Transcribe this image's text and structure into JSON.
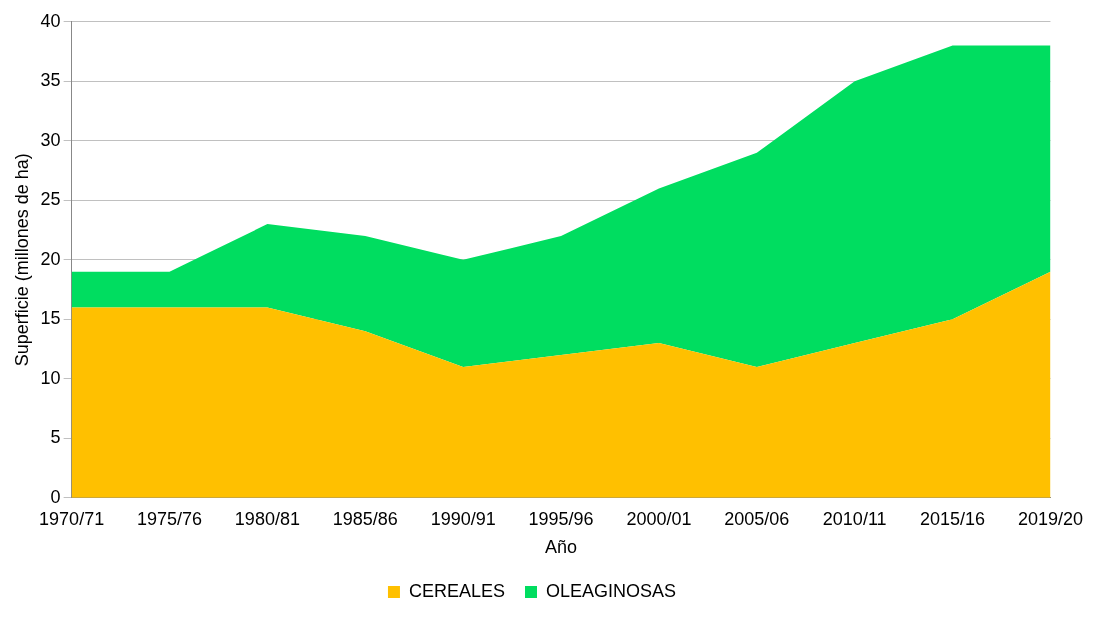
{
  "chart_data": {
    "type": "area",
    "stacked": true,
    "xlabel": "Año",
    "ylabel": "Superficie (millones de ha)",
    "categories": [
      "1970/71",
      "1975/76",
      "1980/81",
      "1985/86",
      "1990/91",
      "1995/96",
      "2000/01",
      "2005/06",
      "2010/11",
      "2015/16",
      "2019/20"
    ],
    "series": [
      {
        "name": "CEREALES",
        "color": "#ffc000",
        "values": [
          16,
          16,
          16,
          14,
          11,
          12,
          13,
          11,
          13,
          15,
          19
        ]
      },
      {
        "name": "OLEAGINOSAS",
        "color": "#00dd60",
        "values": [
          3,
          3,
          7,
          8,
          9,
          10,
          13,
          18,
          22,
          23,
          19
        ]
      }
    ],
    "ylim": [
      0,
      40
    ],
    "yticks": [
      0,
      5,
      10,
      15,
      20,
      25,
      30,
      35,
      40
    ],
    "grid": "y",
    "legend": "bottom"
  }
}
